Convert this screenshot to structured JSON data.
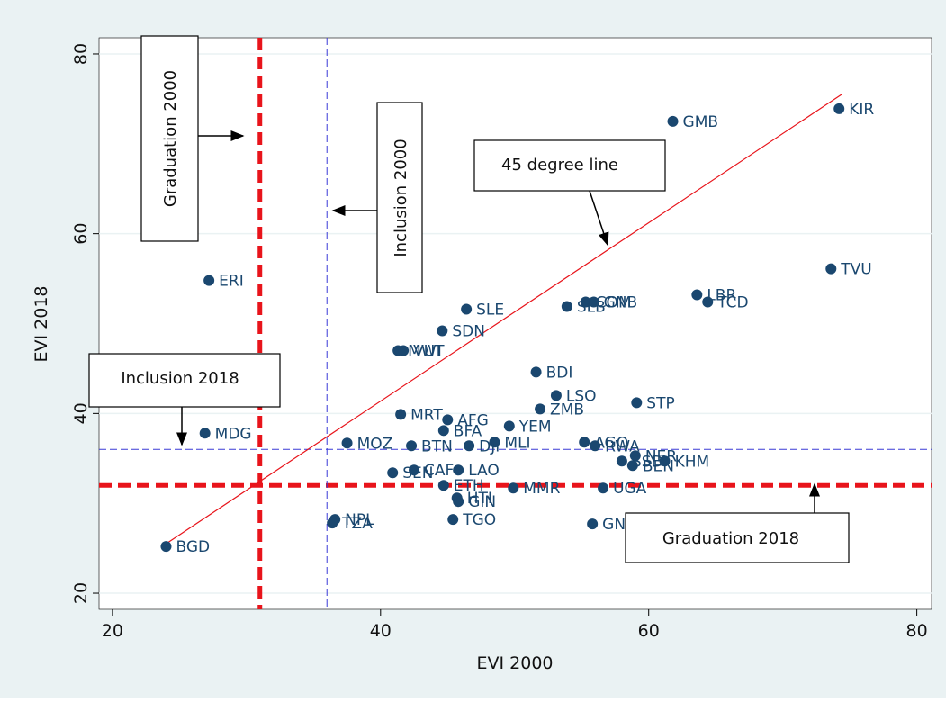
{
  "chart_data": {
    "type": "scatter",
    "xlabel": "EVI 2000",
    "ylabel": "EVI 2018",
    "color": "#1a476f",
    "point_labels": [
      "KIR",
      "GMB",
      "TVU",
      "ERI",
      "LBR",
      "TCD",
      "COM",
      "GNB",
      "SLB",
      "SLE",
      "SDN",
      "MWI",
      "VUT",
      "BDI",
      "LSO",
      "STP",
      "ZMB",
      "MRT",
      "AFG",
      "YEM",
      "BFA",
      "MDG",
      "MOZ",
      "AGO",
      "MLI",
      "RWA",
      "BTN",
      "DJI",
      "NER",
      "KHM",
      "SSD",
      "BEN",
      "LAO",
      "SEN",
      "CAF",
      "ETH",
      "MMR",
      "UGA",
      "HTI",
      "GIN",
      "NPL",
      "TZA",
      "TGO",
      "GNQ",
      "BGD"
    ],
    "x": [
      74.2,
      61.8,
      73.6,
      27.2,
      63.6,
      64.4,
      55.3,
      55.9,
      53.9,
      46.4,
      44.6,
      41.3,
      41.7,
      51.6,
      53.1,
      59.1,
      51.9,
      41.5,
      45.0,
      49.6,
      44.7,
      26.9,
      37.5,
      55.2,
      48.5,
      56.0,
      42.3,
      46.6,
      59.0,
      61.2,
      58.0,
      58.8,
      45.8,
      40.9,
      42.5,
      44.7,
      49.9,
      56.6,
      45.7,
      45.8,
      36.6,
      36.4,
      45.4,
      55.8,
      24.0
    ],
    "values": [
      73.9,
      72.5,
      56.1,
      54.8,
      53.2,
      52.4,
      52.4,
      52.4,
      51.9,
      51.6,
      49.2,
      47.0,
      47.0,
      44.6,
      42.0,
      41.2,
      40.5,
      39.9,
      39.3,
      38.6,
      38.1,
      37.8,
      36.7,
      36.8,
      36.8,
      36.4,
      36.4,
      36.4,
      35.3,
      34.7,
      34.7,
      34.2,
      33.7,
      33.4,
      33.7,
      32.0,
      31.7,
      31.7,
      30.6,
      30.2,
      28.2,
      27.8,
      28.2,
      27.7,
      25.2
    ],
    "xlim": [
      19.0,
      81.1
    ],
    "ylim": [
      18.2,
      81.8
    ],
    "xticks": [
      20,
      40,
      60,
      80
    ],
    "yticks": [
      20,
      40,
      60,
      80
    ],
    "grid": true,
    "reference_lines": [
      {
        "axis": "x",
        "value": 31,
        "color": "#e8141b",
        "width": 5
      },
      {
        "axis": "y",
        "value": 32,
        "color": "#e8141b",
        "width": 5
      },
      {
        "axis": "x",
        "value": 36,
        "color": "#3a3ad6",
        "width": 1
      },
      {
        "axis": "y",
        "value": 36,
        "color": "#3a3ad6",
        "width": 1
      }
    ],
    "diagonal": {
      "x": [
        24,
        74.4
      ],
      "values": [
        25.5,
        75.5
      ],
      "color": "#e8141b"
    },
    "annotations": [
      "Graduation 2000",
      "Inclusion 2000",
      "45 degree line",
      "Inclusion 2018",
      "Graduation 2018"
    ]
  }
}
